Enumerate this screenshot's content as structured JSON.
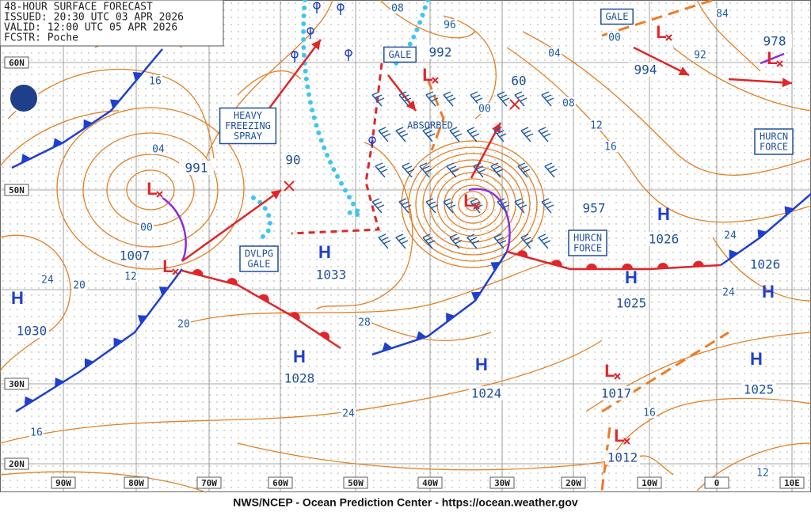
{
  "header": {
    "lines": [
      "48-HOUR SURFACE FORECAST",
      "ISSUED: 20:30 UTC 03 APR 2026",
      "VALID: 12:00 UTC 05 APR 2026",
      "FCSTR: Poche"
    ]
  },
  "footer": "NWS/NCEP - Ocean Prediction Center - https://ocean.weather.gov",
  "latitude_labels": [
    "60N",
    "50N",
    "30N",
    "20N"
  ],
  "longitude_labels": [
    "90W",
    "80W",
    "70W",
    "60W",
    "50W",
    "40W",
    "30W",
    "20W",
    "10W",
    "0",
    "10E"
  ],
  "pressure_centers": [
    {
      "symbol": "L",
      "pressure": 991
    },
    {
      "symbol": "L",
      "pressure": 1007
    },
    {
      "symbol": "H",
      "pressure": 1030
    },
    {
      "symbol": "H",
      "pressure": 1033
    },
    {
      "symbol": "H",
      "pressure": 1028
    },
    {
      "symbol": "H",
      "pressure": 1024
    },
    {
      "symbol": "L",
      "pressure": 957
    },
    {
      "symbol": "H",
      "pressure": 1026
    },
    {
      "symbol": "H",
      "pressure": 1025
    },
    {
      "symbol": "H",
      "pressure": 1026
    },
    {
      "symbol": "H",
      "pressure": 1025
    },
    {
      "symbol": "L",
      "pressure": 1017
    },
    {
      "symbol": "L",
      "pressure": 1012
    },
    {
      "symbol": "L",
      "pressure": 992
    },
    {
      "symbol": "L",
      "pressure": 994
    },
    {
      "symbol": "L",
      "pressure": 978
    }
  ],
  "forecast_positions": [
    "90",
    "60"
  ],
  "isobar_labels": [
    "16",
    "04",
    "00",
    "12",
    "24",
    "20",
    "20",
    "28",
    "24",
    "16",
    "04",
    "08",
    "12",
    "16",
    "00",
    "08",
    "96",
    "84",
    "92",
    "24",
    "24",
    "16",
    "12",
    "00"
  ],
  "warning_boxes": [
    [
      "GALE"
    ],
    [
      "GALE"
    ],
    [
      "HEAVY",
      "FREEZING",
      "SPRAY"
    ],
    [
      "DVLPG",
      "GALE"
    ],
    [
      "HURCN",
      "FORCE"
    ],
    [
      "HURCN",
      "FORCE"
    ]
  ],
  "annotations": [
    "ABSORBED"
  ]
}
